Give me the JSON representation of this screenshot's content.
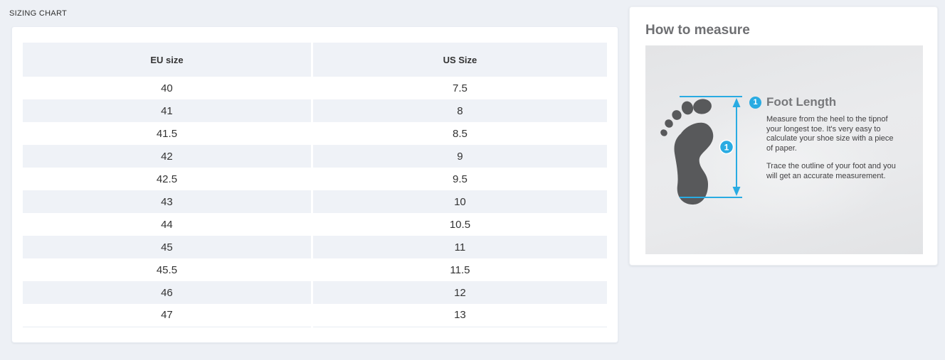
{
  "page": {
    "title": "SIZING CHART"
  },
  "sizing_table": {
    "columns": [
      "EU size",
      "US Size"
    ],
    "rows": [
      [
        "40",
        "7.5"
      ],
      [
        "41",
        "8"
      ],
      [
        "41.5",
        "8.5"
      ],
      [
        "42",
        "9"
      ],
      [
        "42.5",
        "9.5"
      ],
      [
        "43",
        "10"
      ],
      [
        "44",
        "10.5"
      ],
      [
        "45",
        "11"
      ],
      [
        "45.5",
        "11.5"
      ],
      [
        "46",
        "12"
      ],
      [
        "47",
        "13"
      ]
    ]
  },
  "measure_panel": {
    "title": "How to measure",
    "step_badge": "1",
    "step_title": "Foot Length",
    "paragraph1": "Measure from the heel to the tipnof your longest toe. It's very easy to calculate your shoe size with a piece of paper.",
    "paragraph2": "Trace the outline of your foot and you will get an accurate measurement.",
    "diagram_badge": "1",
    "colors": {
      "accent_blue": "#29abe2",
      "foot_gray": "#58595b"
    }
  }
}
